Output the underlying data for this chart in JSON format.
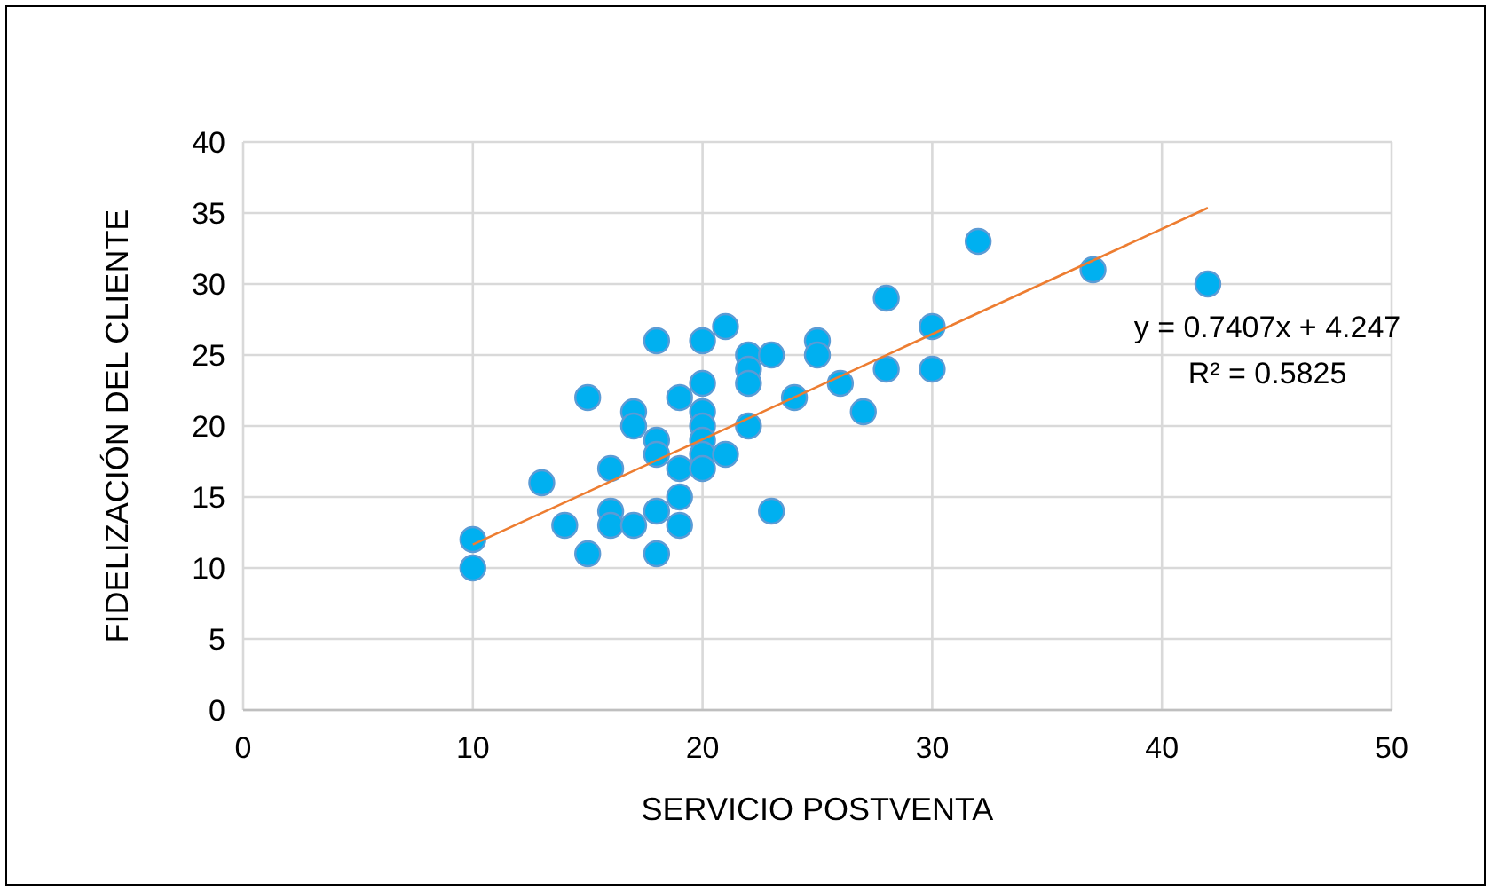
{
  "chart_data": {
    "type": "scatter",
    "xlabel": "SERVICIO POSTVENTA",
    "ylabel": "FIDELIZACIÓN DEL CLIENTE",
    "xlim": [
      0,
      50
    ],
    "xticks": [
      0,
      10,
      20,
      30,
      40,
      50
    ],
    "ylim": [
      0,
      40
    ],
    "yticks": [
      0,
      5,
      10,
      15,
      20,
      25,
      30,
      35,
      40
    ],
    "grid": true,
    "annotations": [
      "y = 0.7407x + 4.247",
      "R² = 0.5825"
    ],
    "series": [
      {
        "marker": "circle",
        "color": "#00b0f0",
        "x": [
          10,
          10,
          13,
          14,
          15,
          15,
          16,
          16,
          16,
          17,
          17,
          17,
          18,
          18,
          18,
          18,
          18,
          19,
          19,
          19,
          19,
          20,
          20,
          20,
          20,
          20,
          20,
          20,
          21,
          21,
          22,
          22,
          22,
          22,
          23,
          23,
          24,
          25,
          25,
          26,
          27,
          28,
          28,
          30,
          30,
          32,
          37,
          42
        ],
        "values": [
          12,
          10,
          16,
          13,
          22,
          11,
          17,
          14,
          13,
          21,
          20,
          13,
          26,
          19,
          18,
          14,
          11,
          22,
          17,
          15,
          13,
          26,
          23,
          21,
          20,
          19,
          18,
          17,
          27,
          18,
          25,
          24,
          23,
          20,
          25,
          14,
          22,
          26,
          25,
          23,
          21,
          29,
          24,
          27,
          24,
          33,
          31,
          30
        ]
      },
      {
        "type": "line",
        "marker": "none",
        "color": "#ed7d31",
        "x": [
          10,
          42
        ],
        "values": [
          11.65,
          35.36
        ]
      }
    ]
  }
}
